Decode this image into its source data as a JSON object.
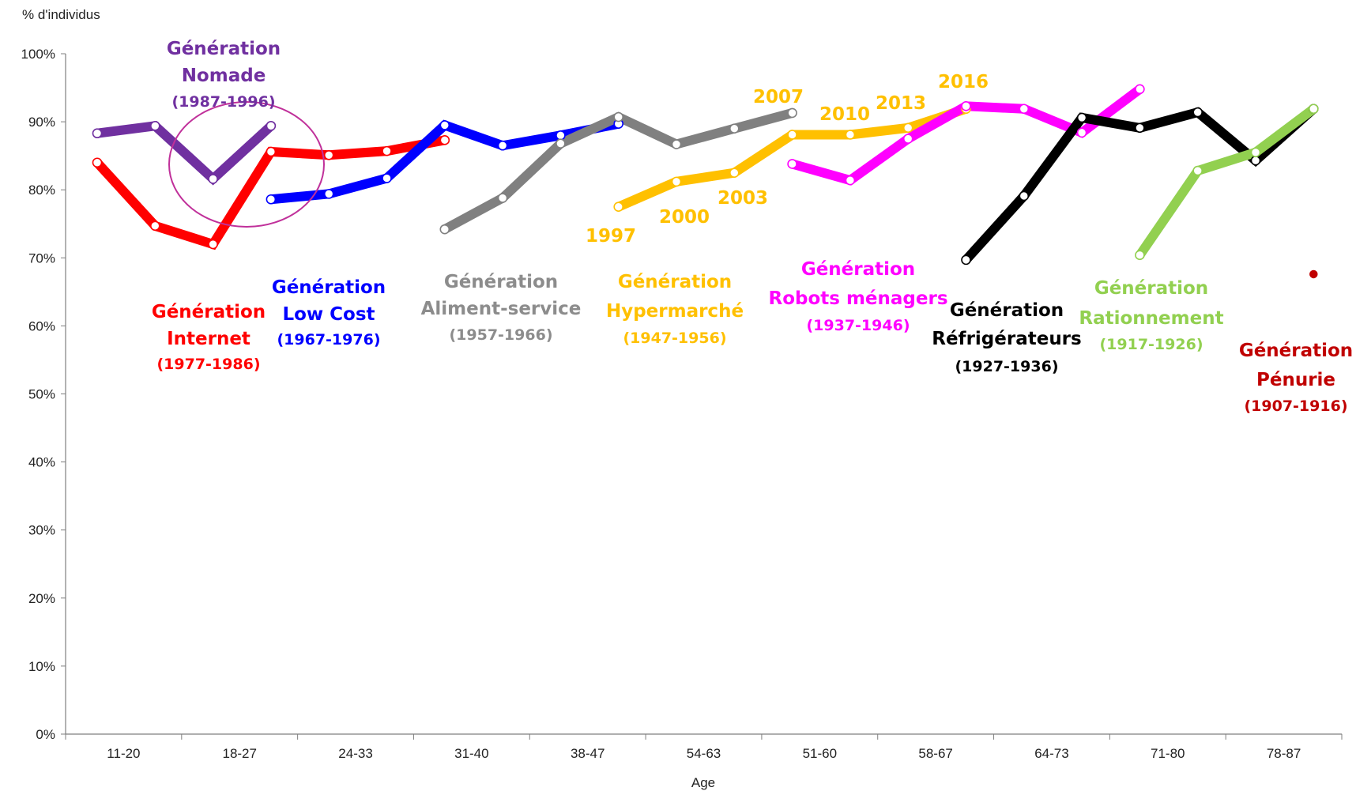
{
  "chart_data": {
    "type": "line",
    "ylabel": "% d'individus",
    "xlabel": "Age",
    "ylim": [
      0,
      100
    ],
    "yticks": [
      "0%",
      "10%",
      "20%",
      "30%",
      "40%",
      "50%",
      "60%",
      "70%",
      "80%",
      "90%",
      "100%"
    ],
    "x_tick_labels": [
      "11-20",
      "18-27",
      "24-33",
      "31-40",
      "38-47",
      "54-63",
      "51-60",
      "58-67",
      "64-73",
      "71-80",
      "78-87"
    ],
    "survey_years": [
      "1997",
      "2000",
      "2003",
      "2007",
      "2010",
      "2013",
      "2016"
    ],
    "series": [
      {
        "name": "Génération Nomade",
        "years": "(1987-1996)",
        "color": "#7030A0",
        "x": [
          0,
          1,
          2,
          3
        ],
        "values": [
          88.3,
          89.4,
          81.6,
          89.4
        ]
      },
      {
        "name": "Génération Internet",
        "years": "(1977-1986)",
        "color": "#FF0000",
        "x": [
          0,
          1,
          2,
          3,
          4,
          5,
          6
        ],
        "values": [
          84.0,
          74.7,
          72.0,
          85.6,
          85.1,
          85.7,
          87.3
        ]
      },
      {
        "name": "Génération Low Cost",
        "years": "(1967-1976)",
        "color": "#0000FF",
        "x": [
          3,
          4,
          5,
          6,
          7,
          8,
          9
        ],
        "values": [
          78.6,
          79.4,
          81.7,
          89.5,
          86.5,
          88.0,
          89.7
        ]
      },
      {
        "name": "Génération Aliment-service",
        "years": "(1957-1966)",
        "color": "#808080",
        "x": [
          6,
          7,
          8,
          9,
          10,
          11,
          12
        ],
        "values": [
          74.2,
          78.8,
          86.8,
          90.7,
          86.7,
          89.0,
          91.3
        ]
      },
      {
        "name": "Génération Hypermarché",
        "years": "(1947-1956)",
        "color": "#FFC000",
        "x": [
          9,
          10,
          11,
          12,
          13,
          14,
          15
        ],
        "values": [
          77.5,
          81.2,
          82.5,
          88.1,
          88.1,
          89.1,
          91.9
        ]
      },
      {
        "name": "Génération Robots ménagers",
        "years": "(1937-1946)",
        "color": "#FF00FF",
        "x": [
          12,
          13,
          14,
          15,
          16,
          17,
          18
        ],
        "values": [
          83.8,
          81.4,
          87.5,
          92.3,
          91.9,
          88.4,
          94.8
        ]
      },
      {
        "name": "Génération Réfrigérateurs",
        "years": "(1927-1936)",
        "color": "#000000",
        "x": [
          15,
          16,
          17,
          18,
          19,
          20,
          21
        ],
        "values": [
          69.7,
          79.1,
          90.6,
          89.1,
          91.4,
          84.3,
          91.9
        ]
      },
      {
        "name": "Génération Rationnement",
        "years": "(1917-1926)",
        "color": "#92D050",
        "x": [
          18,
          19,
          20,
          21
        ],
        "values": [
          70.4,
          82.8,
          85.5,
          91.9
        ]
      },
      {
        "name": "Génération Pénurie",
        "years": "(1907-1916)",
        "color": "#C00000",
        "x": [
          21
        ],
        "values": [
          67.6
        ]
      }
    ]
  }
}
